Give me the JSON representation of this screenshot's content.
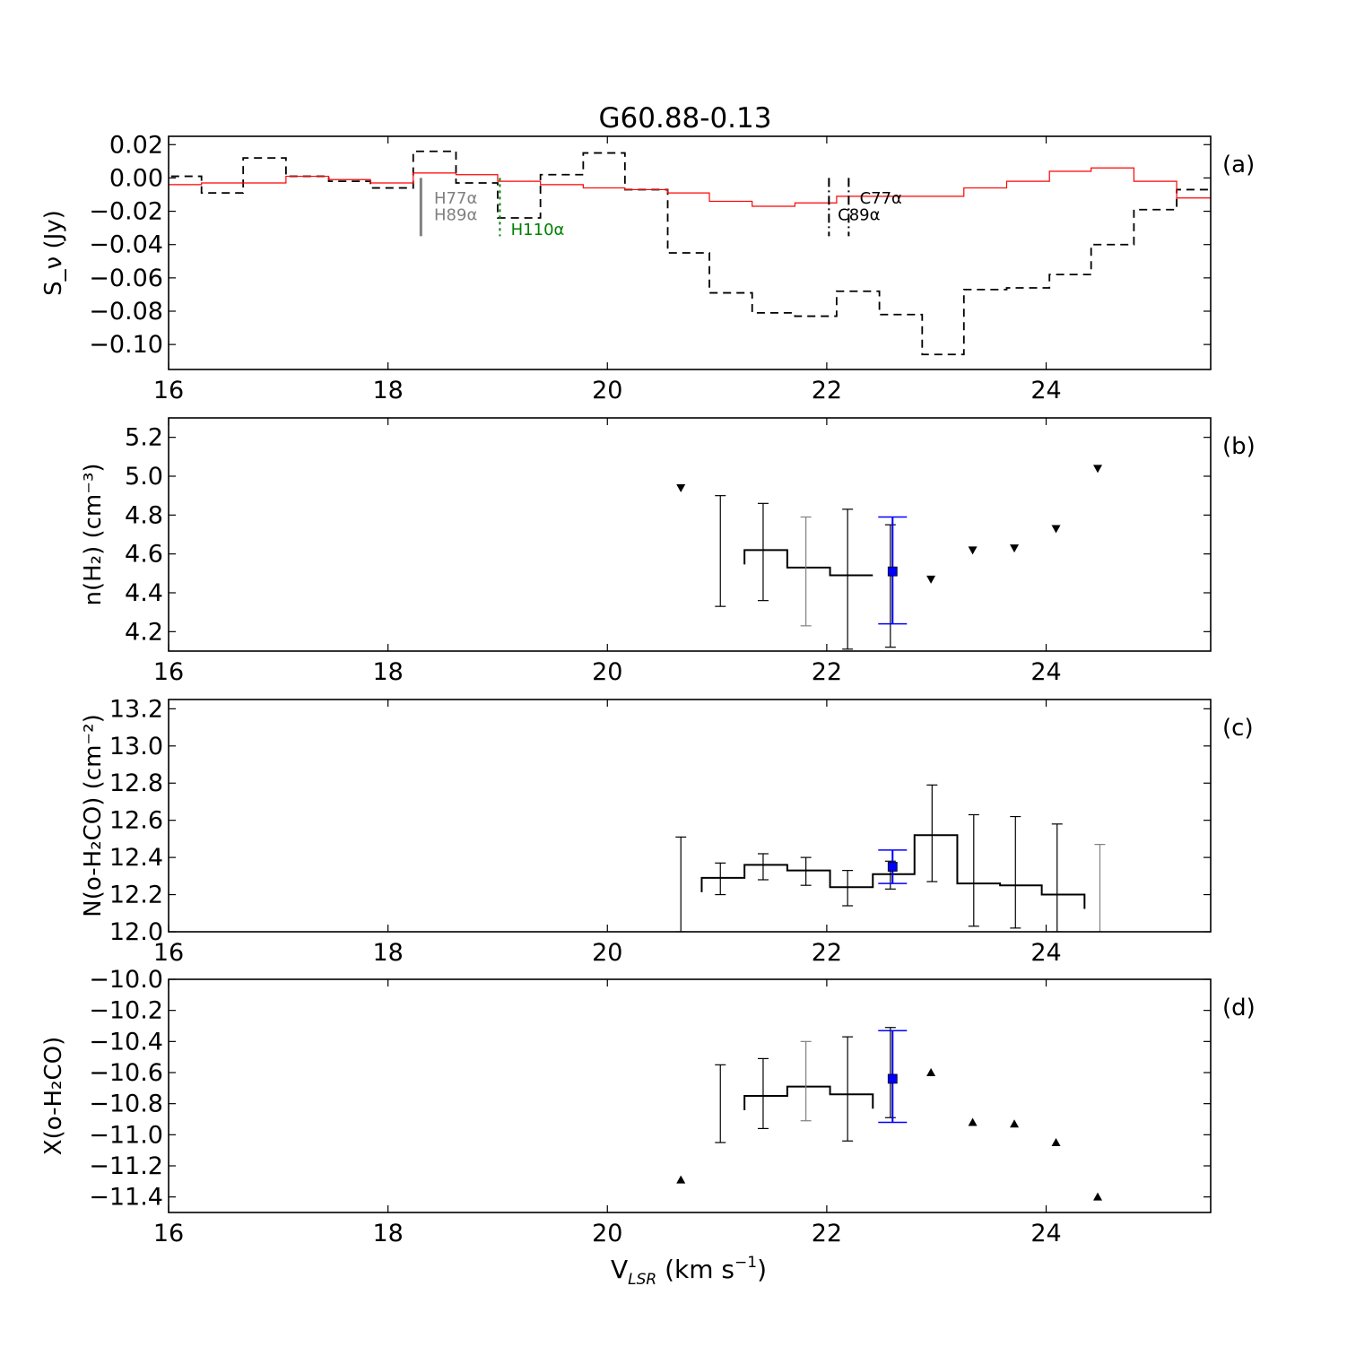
{
  "title": "G60.88-0.13",
  "xlabel_main": "V",
  "xlabel_sub": "LSR",
  "xlabel_unit": " (km s",
  "xlabel_sup": "−1",
  "xlabel_close": ")",
  "chart_data": [
    {
      "panel": "a",
      "panel_label": "(a)",
      "type": "line",
      "ylabel": "S_ν (Jy)",
      "xlim": [
        16,
        25.5
      ],
      "ylim": [
        -0.115,
        0.025
      ],
      "xticks": [
        16,
        18,
        20,
        22,
        24
      ],
      "yticks": [
        0.02,
        0.0,
        -0.02,
        -0.04,
        -0.06,
        -0.08,
        -0.1
      ],
      "ytick_labels": [
        "0.02",
        "0.00",
        "−0.02",
        "−0.04",
        "−0.06",
        "−0.08",
        "−0.10"
      ],
      "series": [
        {
          "style": "dashed-black-step",
          "color": "#000000",
          "edges": [
            15.9,
            16.3,
            16.68,
            17.07,
            17.46,
            17.84,
            18.23,
            18.62,
            19.0,
            19.39,
            19.78,
            20.16,
            20.55,
            20.93,
            21.32,
            21.71,
            22.09,
            22.48,
            22.87,
            23.25,
            23.64,
            24.03,
            24.41,
            24.8,
            25.19,
            25.5
          ],
          "values": [
            0.001,
            -0.009,
            0.012,
            0.001,
            -0.002,
            -0.006,
            0.016,
            -0.003,
            -0.024,
            0.002,
            0.015,
            -0.007,
            -0.045,
            -0.069,
            -0.081,
            -0.083,
            -0.068,
            -0.082,
            -0.106,
            -0.067,
            -0.066,
            -0.058,
            -0.04,
            -0.019,
            -0.007
          ]
        },
        {
          "style": "solid-red-step",
          "color": "#ff0000",
          "edges": [
            15.9,
            16.3,
            16.68,
            17.07,
            17.46,
            17.84,
            18.23,
            18.62,
            19.0,
            19.39,
            19.78,
            20.16,
            20.55,
            20.93,
            21.32,
            21.71,
            22.09,
            22.48,
            22.87,
            23.25,
            23.64,
            24.03,
            24.41,
            24.8,
            25.19,
            25.5
          ],
          "values": [
            -0.004,
            -0.003,
            -0.003,
            0.001,
            -0.001,
            -0.003,
            0.003,
            0.002,
            -0.002,
            -0.004,
            -0.006,
            -0.007,
            -0.009,
            -0.014,
            -0.017,
            -0.015,
            -0.011,
            -0.011,
            -0.011,
            -0.006,
            -0.002,
            0.004,
            0.006,
            -0.002,
            -0.012
          ]
        }
      ],
      "annotations": [
        {
          "text": "H77α",
          "x": 18.42,
          "y": -0.011,
          "color": "#808080"
        },
        {
          "text": "H89α",
          "x": 18.42,
          "y": -0.021,
          "color": "#808080"
        },
        {
          "text": "H110α",
          "x": 19.12,
          "y": -0.03,
          "color": "#008000"
        },
        {
          "text": "C77α",
          "x": 22.3,
          "y": -0.011,
          "color": "#000000"
        },
        {
          "text": "C89α",
          "x": 22.1,
          "y": -0.021,
          "color": "#000000"
        }
      ],
      "markers": [
        {
          "x": 18.3,
          "y_top": 0.0,
          "y_bottom": -0.035,
          "color": "#808080",
          "style": "solid"
        },
        {
          "x": 19.02,
          "y_top": 0.0,
          "y_bottom": -0.035,
          "color": "#008000",
          "style": "dotted"
        },
        {
          "x": 22.02,
          "y_top": 0.0,
          "y_bottom": -0.035,
          "color": "#000000",
          "style": "dashdot"
        },
        {
          "x": 22.2,
          "y_top": 0.0,
          "y_bottom": -0.035,
          "color": "#000000",
          "style": "dashdot"
        }
      ]
    },
    {
      "panel": "b",
      "panel_label": "(b)",
      "type": "scatter",
      "ylabel": "n(H₂) (cm⁻³)",
      "xlim": [
        16,
        25.5
      ],
      "ylim": [
        4.1,
        5.3
      ],
      "xticks": [
        16,
        18,
        20,
        22,
        24
      ],
      "yticks": [
        4.2,
        4.4,
        4.6,
        4.8,
        5.0,
        5.2
      ],
      "ytick_labels": [
        "4.2",
        "4.4",
        "4.6",
        "4.8",
        "5.0",
        "5.2"
      ],
      "step": {
        "edges": [
          21.25,
          21.64,
          22.03,
          22.42
        ],
        "values": [
          4.62,
          4.53,
          4.49
        ],
        "open_left_at": 21.25
      },
      "errorbars": [
        {
          "x": 21.03,
          "y": 4.63,
          "lo": 4.33,
          "hi": 4.9,
          "color": "#000000"
        },
        {
          "x": 21.42,
          "y": 4.62,
          "lo": 4.36,
          "hi": 4.86,
          "color": "#000000"
        },
        {
          "x": 21.81,
          "y": 4.53,
          "lo": 4.23,
          "hi": 4.79,
          "color": "#808080"
        },
        {
          "x": 22.19,
          "y": 4.49,
          "lo": 4.11,
          "hi": 4.83,
          "color": "#000000"
        },
        {
          "x": 22.58,
          "y": 4.45,
          "lo": 4.12,
          "hi": 4.75,
          "color": "#000000"
        }
      ],
      "highlight": {
        "x": 22.6,
        "y": 4.51,
        "lo": 4.24,
        "hi": 4.79,
        "color": "#0000ff"
      },
      "limits": [
        {
          "x": 20.67,
          "y": 4.94,
          "marker": "down"
        },
        {
          "x": 22.95,
          "y": 4.47,
          "marker": "down"
        },
        {
          "x": 23.33,
          "y": 4.62,
          "marker": "down"
        },
        {
          "x": 23.71,
          "y": 4.63,
          "marker": "down"
        },
        {
          "x": 24.09,
          "y": 4.73,
          "marker": "down"
        },
        {
          "x": 24.47,
          "y": 5.04,
          "marker": "down"
        }
      ]
    },
    {
      "panel": "c",
      "panel_label": "(c)",
      "type": "scatter",
      "ylabel": "N(o-H₂CO) (cm⁻²)",
      "xlim": [
        16,
        25.5
      ],
      "ylim": [
        12.0,
        13.25
      ],
      "xticks": [
        16,
        18,
        20,
        22,
        24
      ],
      "yticks": [
        12.0,
        12.2,
        12.4,
        12.6,
        12.8,
        13.0,
        13.2
      ],
      "ytick_labels": [
        "12.0",
        "12.2",
        "12.4",
        "12.6",
        "12.8",
        "13.0",
        "13.2"
      ],
      "step": {
        "edges": [
          20.86,
          21.25,
          21.64,
          22.03,
          22.42,
          22.8,
          23.19,
          23.58,
          23.96,
          24.35
        ],
        "values": [
          12.29,
          12.36,
          12.33,
          12.24,
          12.31,
          12.52,
          12.26,
          12.25,
          12.2
        ],
        "open_left_at": 20.86,
        "open_right_at": 24.35
      },
      "errorbars": [
        {
          "x": 20.67,
          "y": 12.0,
          "lo": 12.0,
          "hi": 12.51,
          "color": "#000000"
        },
        {
          "x": 21.03,
          "y": 12.29,
          "lo": 12.2,
          "hi": 12.37,
          "color": "#000000"
        },
        {
          "x": 21.42,
          "y": 12.36,
          "lo": 12.28,
          "hi": 12.42,
          "color": "#000000"
        },
        {
          "x": 21.81,
          "y": 12.33,
          "lo": 12.25,
          "hi": 12.4,
          "color": "#000000"
        },
        {
          "x": 22.19,
          "y": 12.24,
          "lo": 12.14,
          "hi": 12.33,
          "color": "#000000"
        },
        {
          "x": 22.58,
          "y": 12.31,
          "lo": 12.23,
          "hi": 12.38,
          "color": "#000000"
        },
        {
          "x": 22.96,
          "y": 12.52,
          "lo": 12.27,
          "hi": 12.79,
          "color": "#000000"
        },
        {
          "x": 23.34,
          "y": 12.26,
          "lo": 12.03,
          "hi": 12.63,
          "color": "#000000"
        },
        {
          "x": 23.72,
          "y": 12.25,
          "lo": 12.02,
          "hi": 12.62,
          "color": "#000000"
        },
        {
          "x": 24.1,
          "y": 12.2,
          "lo": 12.0,
          "hi": 12.58,
          "color": "#000000"
        },
        {
          "x": 24.49,
          "y": 12.0,
          "lo": 12.0,
          "hi": 12.47,
          "color": "#808080"
        }
      ],
      "highlight": {
        "x": 22.6,
        "y": 12.35,
        "lo": 12.26,
        "hi": 12.44,
        "color": "#0000ff"
      },
      "limits": []
    },
    {
      "panel": "d",
      "panel_label": "(d)",
      "type": "scatter",
      "ylabel": "X(o-H₂CO)",
      "xlim": [
        16,
        25.5
      ],
      "ylim": [
        -11.5,
        -10.0
      ],
      "xticks": [
        16,
        18,
        20,
        22,
        24
      ],
      "yticks": [
        -10.0,
        -10.2,
        -10.4,
        -10.6,
        -10.8,
        -11.0,
        -11.2,
        -11.4
      ],
      "ytick_labels": [
        "−10.0",
        "−10.2",
        "−10.4",
        "−10.6",
        "−10.8",
        "−11.0",
        "−11.2",
        "−11.4"
      ],
      "step": {
        "edges": [
          21.25,
          21.64,
          22.03,
          22.42
        ],
        "values": [
          -10.75,
          -10.69,
          -10.74
        ],
        "open_left_at": 21.25,
        "open_right_at": 22.42
      },
      "errorbars": [
        {
          "x": 21.03,
          "y": -10.8,
          "lo": -11.05,
          "hi": -10.55,
          "color": "#000000"
        },
        {
          "x": 21.42,
          "y": -10.75,
          "lo": -10.96,
          "hi": -10.51,
          "color": "#000000"
        },
        {
          "x": 21.81,
          "y": -10.69,
          "lo": -10.91,
          "hi": -10.4,
          "color": "#808080"
        },
        {
          "x": 22.19,
          "y": -10.74,
          "lo": -11.04,
          "hi": -10.37,
          "color": "#000000"
        },
        {
          "x": 22.58,
          "y": -10.62,
          "lo": -10.89,
          "hi": -10.31,
          "color": "#000000"
        }
      ],
      "highlight": {
        "x": 22.6,
        "y": -10.64,
        "lo": -10.92,
        "hi": -10.33,
        "color": "#0000ff"
      },
      "limits": [
        {
          "x": 20.67,
          "y": -11.29,
          "marker": "up"
        },
        {
          "x": 22.95,
          "y": -10.6,
          "marker": "up"
        },
        {
          "x": 23.33,
          "y": -10.92,
          "marker": "up"
        },
        {
          "x": 23.71,
          "y": -10.93,
          "marker": "up"
        },
        {
          "x": 24.09,
          "y": -11.05,
          "marker": "up"
        },
        {
          "x": 24.47,
          "y": -11.4,
          "marker": "up"
        }
      ]
    }
  ]
}
